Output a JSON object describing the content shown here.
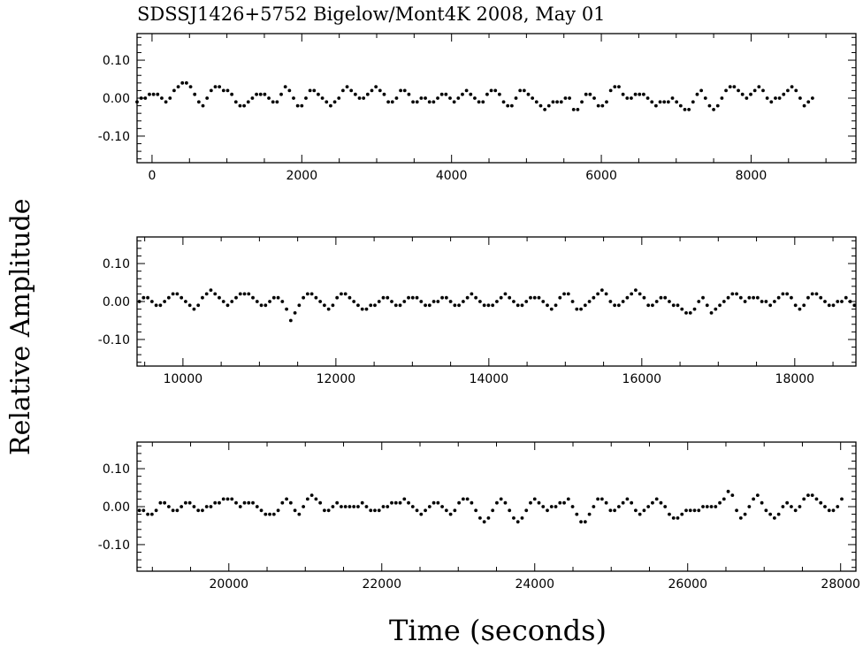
{
  "chart_data": {
    "type": "scatter",
    "title": "SDSSJ1426+5752  Bigelow/Mont4K  2008, May 01",
    "xlabel": "Time (seconds)",
    "ylabel": "Relative Amplitude",
    "panels": [
      {
        "xlim": [
          -200,
          9400
        ],
        "ylim": [
          -0.17,
          0.17
        ],
        "xticks": [
          "0",
          "2000",
          "4000",
          "6000",
          "8000"
        ],
        "xtick_values": [
          0,
          2000,
          4000,
          6000,
          8000
        ],
        "yticks": [
          "0.10",
          "0.00",
          "-0.10"
        ],
        "ytick_values": [
          0.1,
          0.0,
          -0.1
        ],
        "x_start": -200,
        "x_end": 9380,
        "x_step": 55,
        "y": [
          -0.01,
          0.0,
          0.0,
          0.01,
          0.01,
          0.01,
          0.0,
          -0.01,
          0.0,
          0.02,
          0.03,
          0.04,
          0.04,
          0.03,
          0.01,
          -0.01,
          -0.02,
          0.0,
          0.02,
          0.03,
          0.03,
          0.02,
          0.02,
          0.01,
          -0.01,
          -0.02,
          -0.02,
          -0.01,
          0.0,
          0.01,
          0.01,
          0.01,
          0.0,
          -0.01,
          -0.01,
          0.01,
          0.03,
          0.02,
          0.0,
          -0.02,
          -0.02,
          0.0,
          0.02,
          0.02,
          0.01,
          0.0,
          -0.01,
          -0.02,
          -0.01,
          0.0,
          0.02,
          0.03,
          0.02,
          0.01,
          0.0,
          0.0,
          0.01,
          0.02,
          0.03,
          0.02,
          0.01,
          -0.01,
          -0.01,
          0.0,
          0.02,
          0.02,
          0.01,
          -0.01,
          -0.01,
          0.0,
          0.0,
          -0.01,
          -0.01,
          0.0,
          0.01,
          0.01,
          0.0,
          -0.01,
          0.0,
          0.01,
          0.02,
          0.01,
          0.0,
          -0.01,
          -0.01,
          0.01,
          0.02,
          0.02,
          0.01,
          -0.01,
          -0.02,
          -0.02,
          0.0,
          0.02,
          0.02,
          0.01,
          0.0,
          -0.01,
          -0.02,
          -0.03,
          -0.02,
          -0.01,
          -0.01,
          -0.01,
          0.0,
          0.0,
          -0.03,
          -0.03,
          -0.01,
          0.01,
          0.01,
          0.0,
          -0.02,
          -0.02,
          -0.01,
          0.02,
          0.03,
          0.03,
          0.01,
          0.0,
          0.0,
          0.01,
          0.01,
          0.01,
          0.0,
          -0.01,
          -0.02,
          -0.01,
          -0.01,
          -0.01,
          0.0,
          -0.01,
          -0.02,
          -0.03,
          -0.03,
          -0.01,
          0.01,
          0.02,
          0.0,
          -0.02,
          -0.03,
          -0.02,
          0.0,
          0.02,
          0.03,
          0.03,
          0.02,
          0.01,
          0.0,
          0.01,
          0.02,
          0.03,
          0.02,
          0.0,
          -0.01,
          0.0,
          0.0,
          0.01,
          0.02,
          0.03,
          0.02,
          0.0,
          -0.02,
          -0.01,
          0.0
        ]
      },
      {
        "xlim": [
          9400,
          18800
        ],
        "ylim": [
          -0.17,
          0.17
        ],
        "xticks": [
          "10000",
          "12000",
          "14000",
          "16000",
          "18000"
        ],
        "xtick_values": [
          10000,
          12000,
          14000,
          16000,
          18000
        ],
        "yticks": [
          "0.10",
          "0.00",
          "-0.10"
        ],
        "ytick_values": [
          0.1,
          0.0,
          -0.1
        ],
        "x_start": 9430,
        "x_end": 18780,
        "x_step": 55,
        "y": [
          0.0,
          0.01,
          0.01,
          0.0,
          -0.01,
          -0.01,
          0.0,
          0.01,
          0.02,
          0.02,
          0.01,
          0.0,
          -0.01,
          -0.02,
          -0.01,
          0.01,
          0.02,
          0.03,
          0.02,
          0.01,
          0.0,
          -0.01,
          0.0,
          0.01,
          0.02,
          0.02,
          0.02,
          0.01,
          0.0,
          -0.01,
          -0.01,
          0.0,
          0.01,
          0.01,
          0.0,
          -0.02,
          -0.05,
          -0.03,
          -0.01,
          0.01,
          0.02,
          0.02,
          0.01,
          0.0,
          -0.01,
          -0.02,
          -0.01,
          0.01,
          0.02,
          0.02,
          0.01,
          0.0,
          -0.01,
          -0.02,
          -0.02,
          -0.01,
          -0.01,
          0.0,
          0.01,
          0.01,
          0.0,
          -0.01,
          -0.01,
          0.0,
          0.01,
          0.01,
          0.01,
          0.0,
          -0.01,
          -0.01,
          0.0,
          0.0,
          0.01,
          0.01,
          0.0,
          -0.01,
          -0.01,
          0.0,
          0.01,
          0.02,
          0.01,
          0.0,
          -0.01,
          -0.01,
          -0.01,
          0.0,
          0.01,
          0.02,
          0.01,
          0.0,
          -0.01,
          -0.01,
          0.0,
          0.01,
          0.01,
          0.01,
          0.0,
          -0.01,
          -0.02,
          -0.01,
          0.01,
          0.02,
          0.02,
          0.0,
          -0.02,
          -0.02,
          -0.01,
          0.0,
          0.01,
          0.02,
          0.03,
          0.02,
          0.0,
          -0.01,
          -0.01,
          0.0,
          0.01,
          0.02,
          0.03,
          0.02,
          0.01,
          -0.01,
          -0.01,
          0.0,
          0.01,
          0.01,
          0.0,
          -0.01,
          -0.01,
          -0.02,
          -0.03,
          -0.03,
          -0.02,
          0.0,
          0.01,
          -0.01,
          -0.03,
          -0.02,
          -0.01,
          0.0,
          0.01,
          0.02,
          0.02,
          0.01,
          0.0,
          0.01,
          0.01,
          0.01,
          0.0,
          0.0,
          -0.01,
          0.0,
          0.01,
          0.02,
          0.02,
          0.01,
          -0.01,
          -0.02,
          -0.01,
          0.01,
          0.02,
          0.02,
          0.01,
          0.0,
          -0.01,
          -0.01,
          0.0,
          0.0,
          0.01,
          0.0,
          -0.01,
          -0.01
        ]
      },
      {
        "xlim": [
          18800,
          28200
        ],
        "ylim": [
          -0.17,
          0.17
        ],
        "xticks": [
          "20000",
          "22000",
          "24000",
          "26000",
          "28000"
        ],
        "xtick_values": [
          20000,
          22000,
          24000,
          26000,
          28000
        ],
        "yticks": [
          "0.10",
          "0.00",
          "-0.10"
        ],
        "ytick_values": [
          0.1,
          0.0,
          -0.1
        ],
        "x_start": 18830,
        "x_end": 28180,
        "x_step": 55,
        "y": [
          -0.01,
          -0.01,
          -0.02,
          -0.02,
          -0.01,
          0.01,
          0.01,
          0.0,
          -0.01,
          -0.01,
          0.0,
          0.01,
          0.01,
          0.0,
          -0.01,
          -0.01,
          0.0,
          0.0,
          0.01,
          0.01,
          0.02,
          0.02,
          0.02,
          0.01,
          0.0,
          0.01,
          0.01,
          0.01,
          0.0,
          -0.01,
          -0.02,
          -0.02,
          -0.02,
          -0.01,
          0.01,
          0.02,
          0.01,
          -0.01,
          -0.02,
          0.0,
          0.02,
          0.03,
          0.02,
          0.01,
          -0.01,
          -0.01,
          0.0,
          0.01,
          0.0,
          0.0,
          0.0,
          0.0,
          0.0,
          0.01,
          0.0,
          -0.01,
          -0.01,
          -0.01,
          0.0,
          0.0,
          0.01,
          0.01,
          0.01,
          0.02,
          0.01,
          0.0,
          -0.01,
          -0.02,
          -0.01,
          0.0,
          0.01,
          0.01,
          0.0,
          -0.01,
          -0.02,
          -0.01,
          0.01,
          0.02,
          0.02,
          0.01,
          -0.01,
          -0.03,
          -0.04,
          -0.03,
          -0.01,
          0.01,
          0.02,
          0.01,
          -0.01,
          -0.03,
          -0.04,
          -0.03,
          -0.01,
          0.01,
          0.02,
          0.01,
          0.0,
          -0.01,
          0.0,
          0.0,
          0.01,
          0.01,
          0.02,
          0.0,
          -0.02,
          -0.04,
          -0.04,
          -0.02,
          0.0,
          0.02,
          0.02,
          0.01,
          -0.01,
          -0.01,
          0.0,
          0.01,
          0.02,
          0.01,
          -0.01,
          -0.02,
          -0.01,
          0.0,
          0.01,
          0.02,
          0.01,
          0.0,
          -0.02,
          -0.03,
          -0.03,
          -0.02,
          -0.01,
          -0.01,
          -0.01,
          -0.01,
          0.0,
          0.0,
          0.0,
          0.0,
          0.01,
          0.02,
          0.04,
          0.03,
          -0.01,
          -0.03,
          -0.02,
          0.0,
          0.02,
          0.03,
          0.01,
          -0.01,
          -0.02,
          -0.03,
          -0.02,
          0.0,
          0.01,
          0.0,
          -0.01,
          0.0,
          0.02,
          0.03,
          0.03,
          0.02,
          0.01,
          0.0,
          -0.01,
          -0.01,
          0.0,
          0.02
        ]
      }
    ]
  }
}
